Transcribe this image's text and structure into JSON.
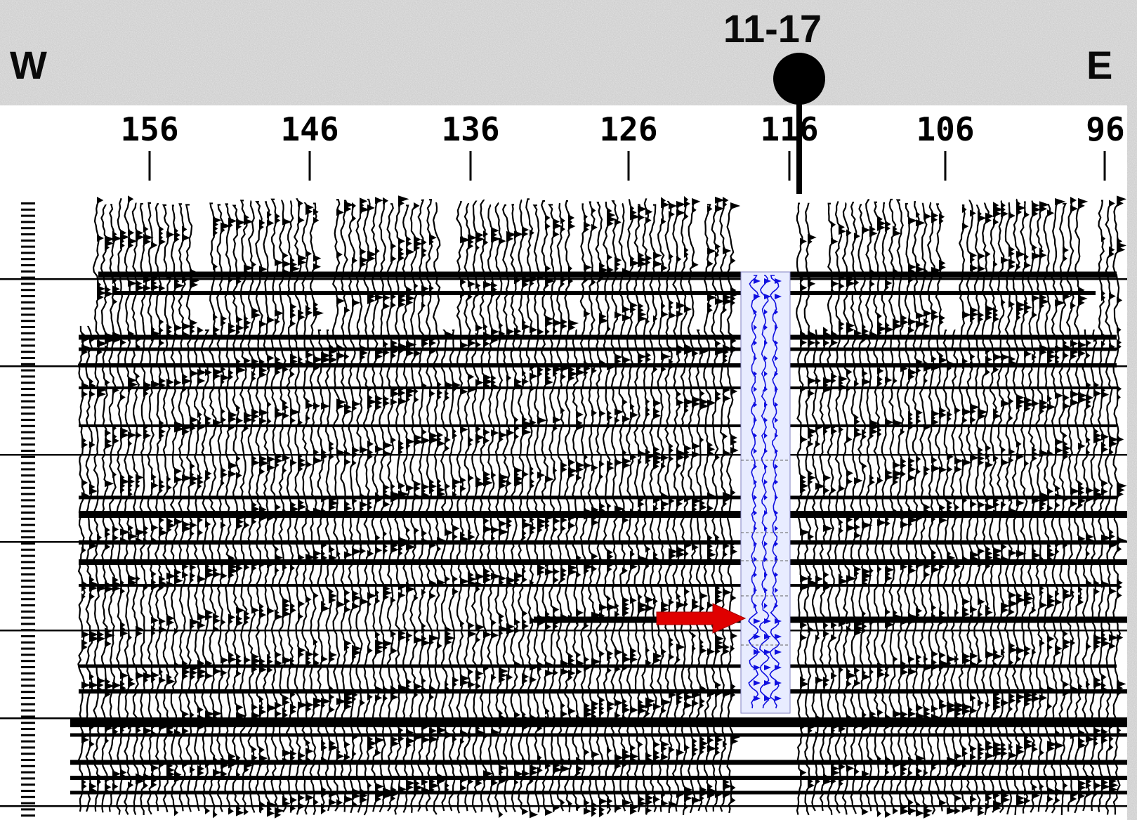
{
  "header": {
    "west_label": "W",
    "east_label": "E",
    "well_name": "11-17"
  },
  "shot_points": [
    "156",
    "146",
    "136",
    "126",
    "116",
    "106",
    "96"
  ],
  "well": {
    "at_shot_point": "116",
    "marker_icon": "well-location-circle-icon"
  },
  "synthetic": {
    "trace_color": "#1010e0",
    "panel_color": "#e8ecff"
  },
  "annotation": {
    "arrow_icon": "red-arrow-icon",
    "arrow_color": "#e00000"
  },
  "colors": {
    "background": "#c8c8c8",
    "section": "#ffffff",
    "ink": "#000000"
  }
}
